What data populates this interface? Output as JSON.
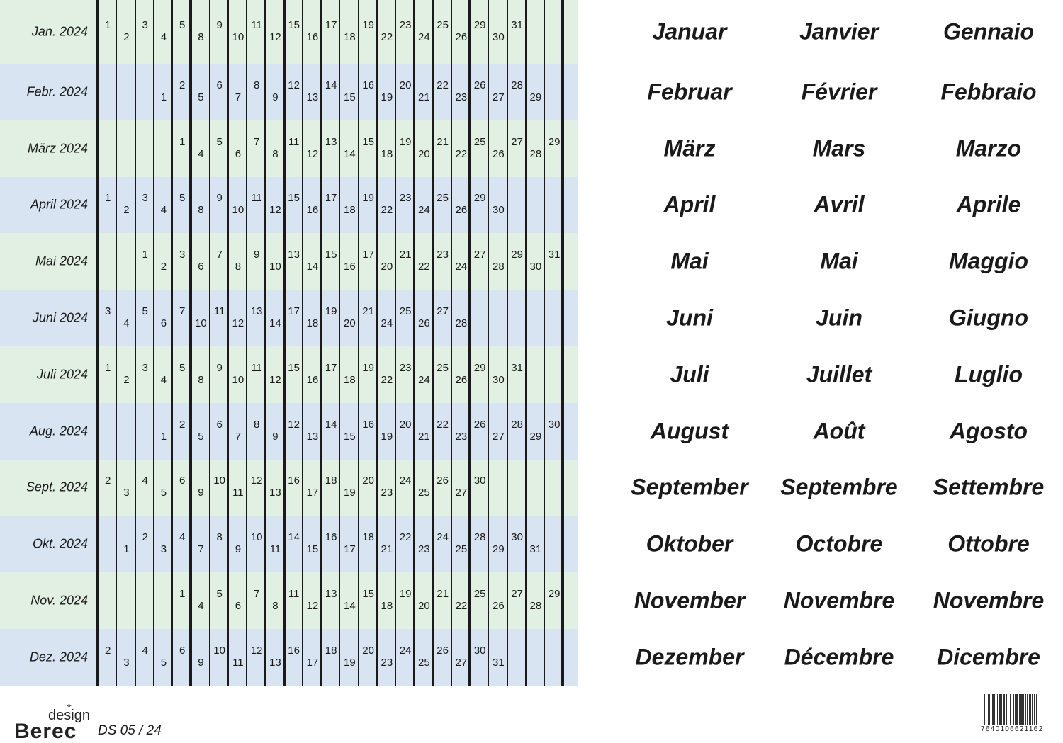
{
  "colors": {
    "row_green": "#e2f0e3",
    "row_blue": "#d9e4f3",
    "lines": "#1a1a1a"
  },
  "months": [
    {
      "label": "Jan. 2024",
      "days": [
        "1",
        "2",
        "3",
        "4",
        "5",
        "8",
        "9",
        "10",
        "11",
        "12",
        "15",
        "16",
        "17",
        "18",
        "19",
        "22",
        "23",
        "24",
        "25",
        "26",
        "29",
        "30",
        "31",
        "",
        ""
      ],
      "de": "Januar",
      "fr": "Janvier",
      "it": "Gennaio"
    },
    {
      "label": "Febr. 2024",
      "days": [
        "",
        "",
        "",
        "1",
        "2",
        "5",
        "6",
        "7",
        "8",
        "9",
        "12",
        "13",
        "14",
        "15",
        "16",
        "19",
        "20",
        "21",
        "22",
        "23",
        "26",
        "27",
        "28",
        "29",
        ""
      ],
      "de": "Februar",
      "fr": "Février",
      "it": "Febbraio"
    },
    {
      "label": "März 2024",
      "days": [
        "",
        "",
        "",
        "",
        "1",
        "4",
        "5",
        "6",
        "7",
        "8",
        "11",
        "12",
        "13",
        "14",
        "15",
        "18",
        "19",
        "20",
        "21",
        "22",
        "25",
        "26",
        "27",
        "28",
        "29"
      ],
      "de": "März",
      "fr": "Mars",
      "it": "Marzo"
    },
    {
      "label": "April 2024",
      "days": [
        "1",
        "2",
        "3",
        "4",
        "5",
        "8",
        "9",
        "10",
        "11",
        "12",
        "15",
        "16",
        "17",
        "18",
        "19",
        "22",
        "23",
        "24",
        "25",
        "26",
        "29",
        "30",
        "",
        "",
        ""
      ],
      "de": "April",
      "fr": "Avril",
      "it": "Aprile"
    },
    {
      "label": "Mai 2024",
      "days": [
        "",
        "",
        "1",
        "2",
        "3",
        "6",
        "7",
        "8",
        "9",
        "10",
        "13",
        "14",
        "15",
        "16",
        "17",
        "20",
        "21",
        "22",
        "23",
        "24",
        "27",
        "28",
        "29",
        "30",
        "31"
      ],
      "de": "Mai",
      "fr": "Mai",
      "it": "Maggio"
    },
    {
      "label": "Juni 2024",
      "days": [
        "3",
        "4",
        "5",
        "6",
        "7",
        "10",
        "11",
        "12",
        "13",
        "14",
        "17",
        "18",
        "19",
        "20",
        "21",
        "24",
        "25",
        "26",
        "27",
        "28",
        "",
        "",
        "",
        "",
        ""
      ],
      "de": "Juni",
      "fr": "Juin",
      "it": "Giugno"
    },
    {
      "label": "Juli 2024",
      "days": [
        "1",
        "2",
        "3",
        "4",
        "5",
        "8",
        "9",
        "10",
        "11",
        "12",
        "15",
        "16",
        "17",
        "18",
        "19",
        "22",
        "23",
        "24",
        "25",
        "26",
        "29",
        "30",
        "31",
        "",
        ""
      ],
      "de": "Juli",
      "fr": "Juillet",
      "it": "Luglio"
    },
    {
      "label": "Aug. 2024",
      "days": [
        "",
        "",
        "",
        "1",
        "2",
        "5",
        "6",
        "7",
        "8",
        "9",
        "12",
        "13",
        "14",
        "15",
        "16",
        "19",
        "20",
        "21",
        "22",
        "23",
        "26",
        "27",
        "28",
        "29",
        "30"
      ],
      "de": "August",
      "fr": "Août",
      "it": "Agosto"
    },
    {
      "label": "Sept. 2024",
      "days": [
        "2",
        "3",
        "4",
        "5",
        "6",
        "9",
        "10",
        "11",
        "12",
        "13",
        "16",
        "17",
        "18",
        "19",
        "20",
        "23",
        "24",
        "25",
        "26",
        "27",
        "30",
        "",
        "",
        "",
        ""
      ],
      "de": "September",
      "fr": "Septembre",
      "it": "Settembre"
    },
    {
      "label": "Okt. 2024",
      "days": [
        "",
        "1",
        "2",
        "3",
        "4",
        "7",
        "8",
        "9",
        "10",
        "11",
        "14",
        "15",
        "16",
        "17",
        "18",
        "21",
        "22",
        "23",
        "24",
        "25",
        "28",
        "29",
        "30",
        "31",
        ""
      ],
      "de": "Oktober",
      "fr": "Octobre",
      "it": "Ottobre"
    },
    {
      "label": "Nov. 2024",
      "days": [
        "",
        "",
        "",
        "",
        "1",
        "4",
        "5",
        "6",
        "7",
        "8",
        "11",
        "12",
        "13",
        "14",
        "15",
        "18",
        "19",
        "20",
        "21",
        "22",
        "25",
        "26",
        "27",
        "28",
        "29"
      ],
      "de": "November",
      "fr": "Novembre",
      "it": "Novembre"
    },
    {
      "label": "Dez. 2024",
      "days": [
        "2",
        "3",
        "4",
        "5",
        "6",
        "9",
        "10",
        "11",
        "12",
        "13",
        "16",
        "17",
        "18",
        "19",
        "20",
        "23",
        "24",
        "25",
        "26",
        "27",
        "30",
        "31",
        "",
        "",
        ""
      ],
      "de": "Dezember",
      "fr": "Décembre",
      "it": "Dicembre"
    }
  ],
  "footer": {
    "logo_design": "design",
    "logo_brand": "Berec",
    "code": "DS 05 / 24",
    "barcode": "7640106621162"
  }
}
